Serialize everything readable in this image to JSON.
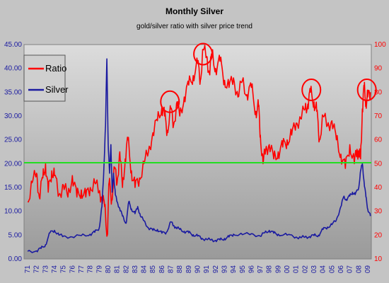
{
  "chart_data": {
    "type": "line",
    "title": "Monthly Silver",
    "subtitle": "gold/silver ratio with silver price trend",
    "legend_position": "top-left",
    "grid": false,
    "x_ticks": [
      "71",
      "72",
      "73",
      "74",
      "75",
      "76",
      "77",
      "78",
      "79",
      "80",
      "81",
      "82",
      "83",
      "84",
      "85",
      "86",
      "87",
      "88",
      "89",
      "90",
      "91",
      "92",
      "93",
      "94",
      "95",
      "96",
      "97",
      "98",
      "99",
      "00",
      "01",
      "02",
      "03",
      "04",
      "05",
      "06",
      "07",
      "08",
      "09"
    ],
    "left_axis": {
      "ylim": [
        0,
        45
      ],
      "ticks": [
        "0.00",
        "5.00",
        "10.00",
        "15.00",
        "20.00",
        "25.00",
        "30.00",
        "35.00",
        "40.00",
        "45.00"
      ],
      "color": "#1a1aa0"
    },
    "right_axis": {
      "ylim": [
        10,
        100
      ],
      "ticks": [
        "10",
        "20",
        "30",
        "40",
        "50",
        "60",
        "70",
        "80",
        "90",
        "100"
      ],
      "color": "#ff0000"
    },
    "reference_line": {
      "axis": "left",
      "value": 20.2,
      "color": "#22dd22"
    },
    "series": [
      {
        "name": "Ratio",
        "axis": "right",
        "color": "#ff0000",
        "x": [
          71.0,
          71.5,
          72.0,
          72.3,
          72.7,
          73.0,
          73.3,
          73.7,
          74.0,
          74.5,
          75.0,
          75.5,
          76.0,
          76.5,
          77.0,
          77.5,
          78.0,
          78.5,
          79.0,
          79.3,
          79.6,
          79.9,
          80.1,
          80.4,
          80.7,
          81.0,
          81.3,
          81.6,
          81.9,
          82.2,
          82.6,
          83.0,
          83.5,
          84.0,
          84.5,
          85.0,
          85.5,
          86.0,
          86.3,
          86.6,
          87.0,
          87.3,
          87.7,
          88.0,
          88.5,
          89.0,
          89.5,
          90.0,
          90.3,
          90.6,
          91.0,
          91.3,
          91.6,
          92.0,
          92.5,
          93.0,
          93.5,
          94.0,
          94.5,
          95.0,
          95.5,
          96.0,
          96.5,
          96.8,
          97.0,
          97.3,
          97.6,
          98.0,
          98.5,
          99.0,
          99.5,
          100.0,
          100.5,
          101.0,
          101.5,
          102.0,
          102.3,
          102.6,
          103.0,
          103.3,
          103.6,
          104.0,
          104.5,
          105.0,
          105.5,
          106.0,
          106.5,
          107.0,
          107.5,
          107.8,
          108.0,
          108.2,
          108.4,
          108.6,
          108.8,
          109.0,
          109.3
        ],
        "values": [
          34,
          42,
          46,
          36,
          44,
          50,
          38,
          47,
          45,
          37,
          41,
          36,
          45,
          36,
          39,
          36,
          40,
          42,
          38,
          36,
          32,
          20,
          42,
          35,
          48,
          42,
          55,
          40,
          52,
          60,
          47,
          40,
          44,
          50,
          55,
          63,
          68,
          74,
          70,
          64,
          73,
          66,
          76,
          70,
          78,
          83,
          87,
          92,
          85,
          98,
          95,
          88,
          96,
          90,
          93,
          85,
          82,
          86,
          78,
          85,
          79,
          82,
          72,
          74,
          62,
          50,
          56,
          58,
          52,
          55,
          57,
          60,
          62,
          67,
          69,
          73,
          75,
          80,
          76,
          72,
          60,
          70,
          66,
          68,
          60,
          54,
          48,
          58,
          50,
          56,
          54,
          52,
          73,
          82,
          76,
          78,
          80
        ]
      },
      {
        "name": "Silver",
        "axis": "left",
        "color": "#1a1aa0",
        "x": [
          71.0,
          72.0,
          72.5,
          73.0,
          73.5,
          74.0,
          74.5,
          75.0,
          76.0,
          77.0,
          78.0,
          78.5,
          79.0,
          79.3,
          79.5,
          79.7,
          79.85,
          80.0,
          80.15,
          80.3,
          80.45,
          80.6,
          80.8,
          81.0,
          81.3,
          81.6,
          82.0,
          82.3,
          82.6,
          83.0,
          83.3,
          83.6,
          84.0,
          84.5,
          85.0,
          85.5,
          86.0,
          86.5,
          87.0,
          87.3,
          87.6,
          88.0,
          88.5,
          89.0,
          89.5,
          90.0,
          90.5,
          91.0,
          91.5,
          92.0,
          92.5,
          93.0,
          93.5,
          94.0,
          95.0,
          96.0,
          97.0,
          97.5,
          98.0,
          98.5,
          99.0,
          100.0,
          101.0,
          101.5,
          102.0,
          102.5,
          103.0,
          103.5,
          104.0,
          104.5,
          105.0,
          105.5,
          106.0,
          106.3,
          106.6,
          107.0,
          107.3,
          107.6,
          108.0,
          108.2,
          108.4,
          108.6,
          108.8,
          109.0,
          109.3
        ],
        "values": [
          1.6,
          1.7,
          2.2,
          3.0,
          5.5,
          6.0,
          5.0,
          4.8,
          4.6,
          4.9,
          5.2,
          5.6,
          6.5,
          11.0,
          18.0,
          28.0,
          42.0,
          24.0,
          18.0,
          24.0,
          14.0,
          18.0,
          13.5,
          12.0,
          10.5,
          9.0,
          7.5,
          12.0,
          10.5,
          9.5,
          11.0,
          9.0,
          8.0,
          6.5,
          6.0,
          6.2,
          5.4,
          5.6,
          7.8,
          7.0,
          6.6,
          6.2,
          5.8,
          5.5,
          5.1,
          4.8,
          4.3,
          4.1,
          4.0,
          3.9,
          4.0,
          4.3,
          4.6,
          5.2,
          5.1,
          5.3,
          4.8,
          5.5,
          6.0,
          5.4,
          5.2,
          5.0,
          4.6,
          4.5,
          4.6,
          4.7,
          4.9,
          5.0,
          6.2,
          6.7,
          7.2,
          8.2,
          11.0,
          13.0,
          12.5,
          13.2,
          14.0,
          13.5,
          15.0,
          18.5,
          20.0,
          16.0,
          13.0,
          10.5,
          9.0
        ]
      }
    ]
  },
  "annotations": {
    "circle_color": "#ff0000",
    "circles": [
      {
        "x": 86.9,
        "right_value": 76
      },
      {
        "x": 90.6,
        "right_value": 96
      },
      {
        "x": 102.7,
        "right_value": 81
      },
      {
        "x": 108.9,
        "right_value": 81
      }
    ]
  }
}
